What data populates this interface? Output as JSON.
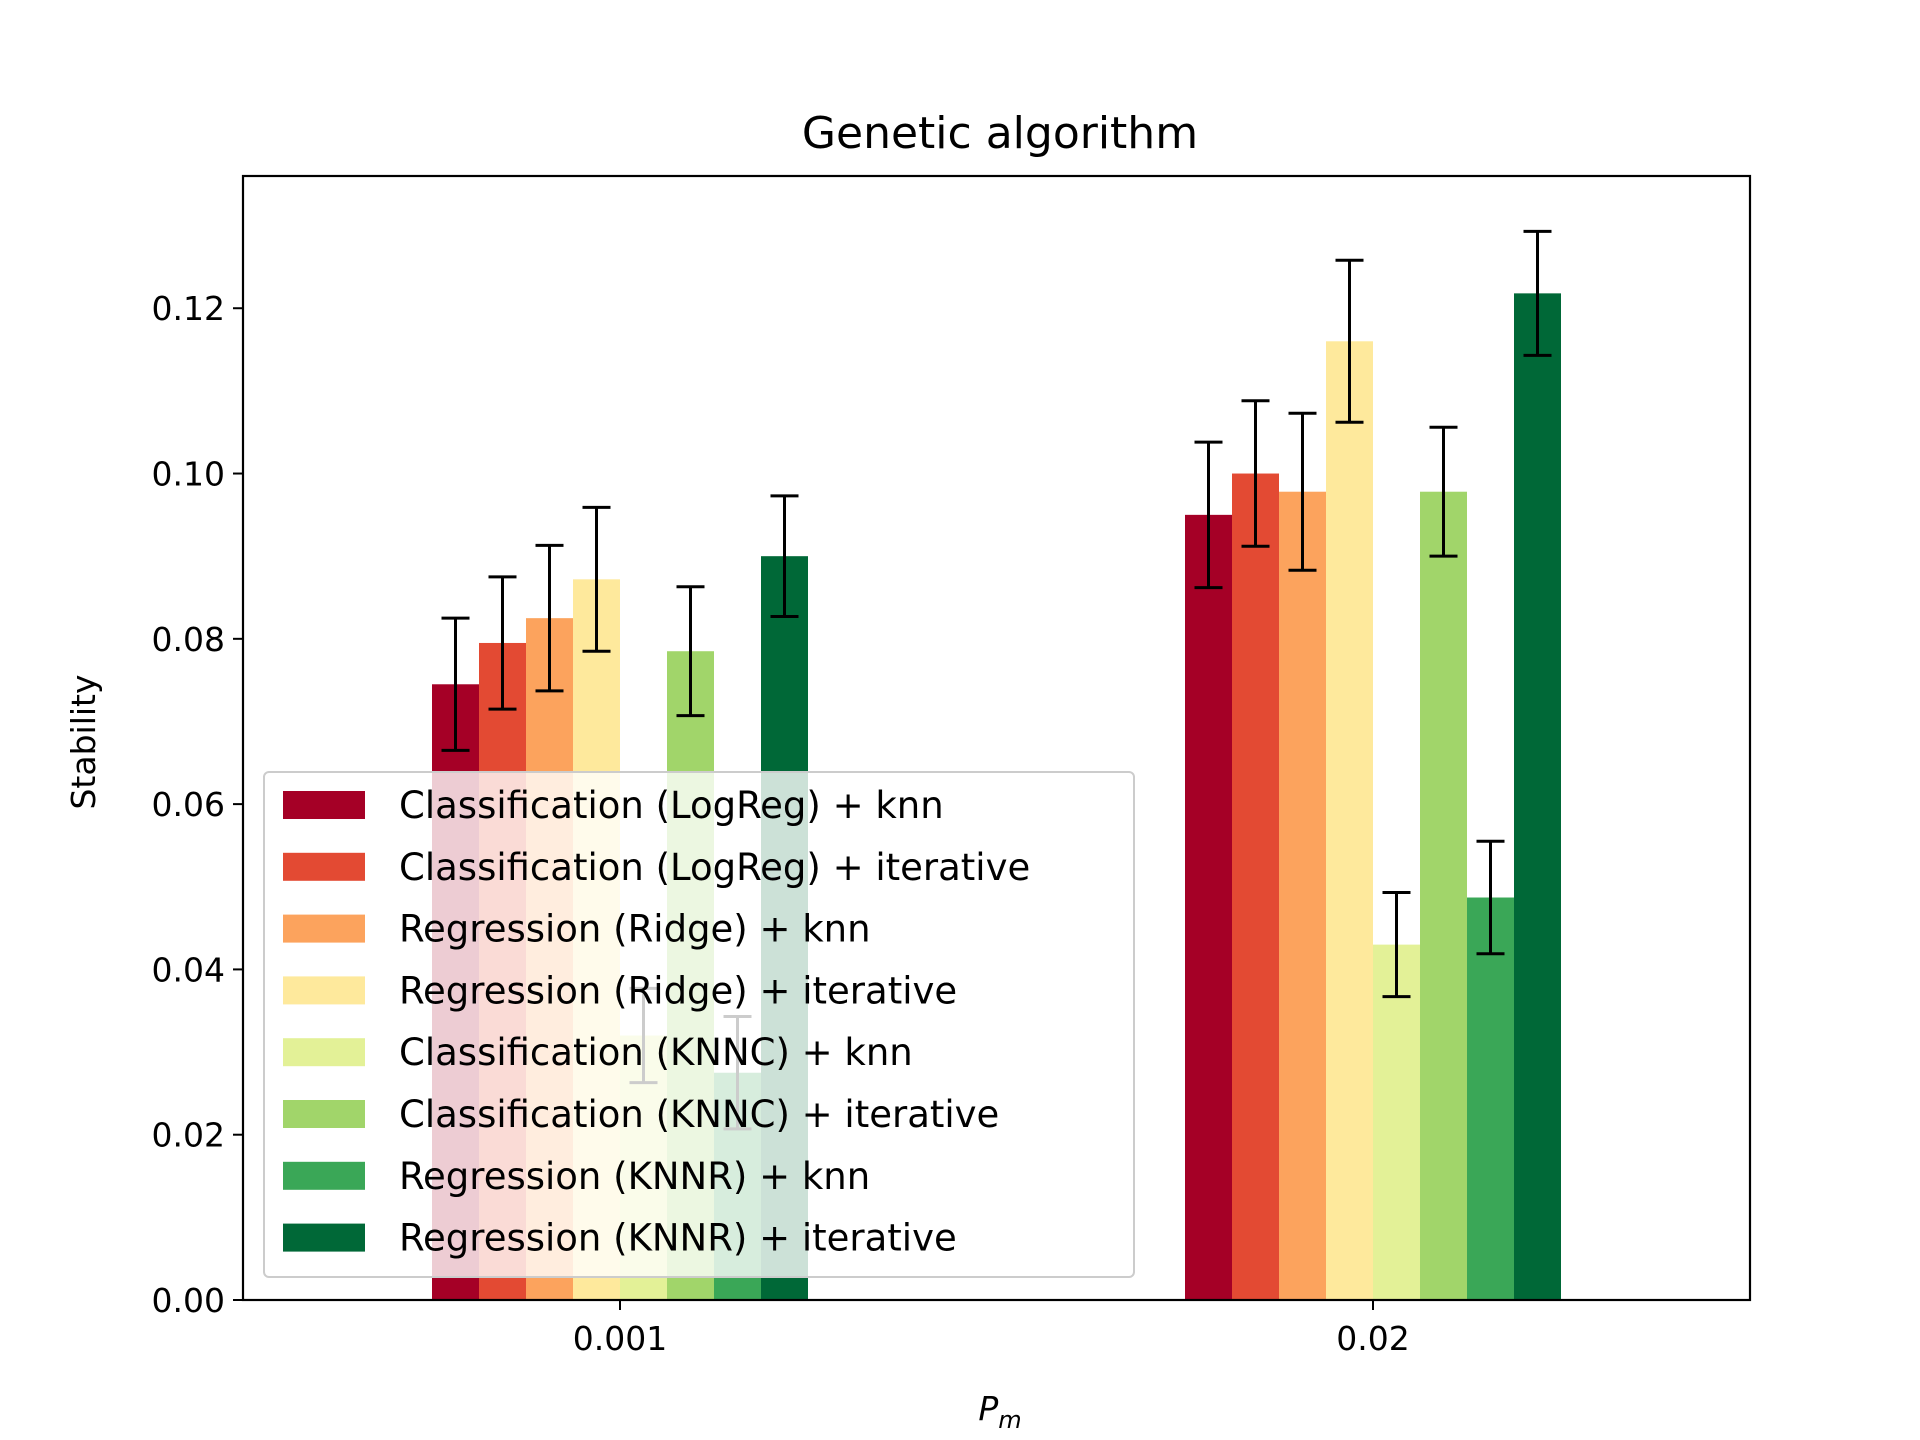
{
  "chart_data": {
    "type": "bar",
    "title": "Genetic algorithm",
    "xlabel_base": "P",
    "xlabel_sub": "m",
    "ylabel": "Stability",
    "categories": [
      "0.001",
      "0.02"
    ],
    "ylim": [
      0,
      0.136
    ],
    "yticks": [
      0.0,
      0.02,
      0.04,
      0.06,
      0.08,
      0.1,
      0.12
    ],
    "ytick_labels": [
      "0.00",
      "0.02",
      "0.04",
      "0.06",
      "0.08",
      "0.10",
      "0.12"
    ],
    "grid": false,
    "legend_position": "lower-left",
    "series": [
      {
        "name": "Classification (LogReg) + knn",
        "color": "#a50026",
        "values": [
          0.0745,
          0.095
        ],
        "errors": [
          0.008,
          0.0088
        ]
      },
      {
        "name": "Classification (LogReg) + iterative",
        "color": "#e34a33",
        "values": [
          0.0795,
          0.1
        ],
        "errors": [
          0.008,
          0.0088
        ]
      },
      {
        "name": "Regression (Ridge) + knn",
        "color": "#fca35d",
        "values": [
          0.0825,
          0.0978
        ],
        "errors": [
          0.0088,
          0.0095
        ]
      },
      {
        "name": "Regression (Ridge) + iterative",
        "color": "#fee99c",
        "values": [
          0.0872,
          0.116
        ],
        "errors": [
          0.0087,
          0.0098
        ]
      },
      {
        "name": "Classification (KNNC) + knn",
        "color": "#e3f197",
        "values": [
          0.032,
          0.043
        ],
        "errors": [
          0.0057,
          0.0063
        ]
      },
      {
        "name": "Classification (KNNC) + iterative",
        "color": "#a1d56a",
        "values": [
          0.0785,
          0.0978
        ],
        "errors": [
          0.0078,
          0.0078
        ]
      },
      {
        "name": "Regression (KNNR) + knn",
        "color": "#3aa757",
        "values": [
          0.0275,
          0.0487
        ],
        "errors": [
          0.0068,
          0.0068
        ]
      },
      {
        "name": "Regression (KNNR) + iterative",
        "color": "#006837",
        "values": [
          0.09,
          0.1218
        ],
        "errors": [
          0.0073,
          0.0075
        ]
      }
    ]
  }
}
